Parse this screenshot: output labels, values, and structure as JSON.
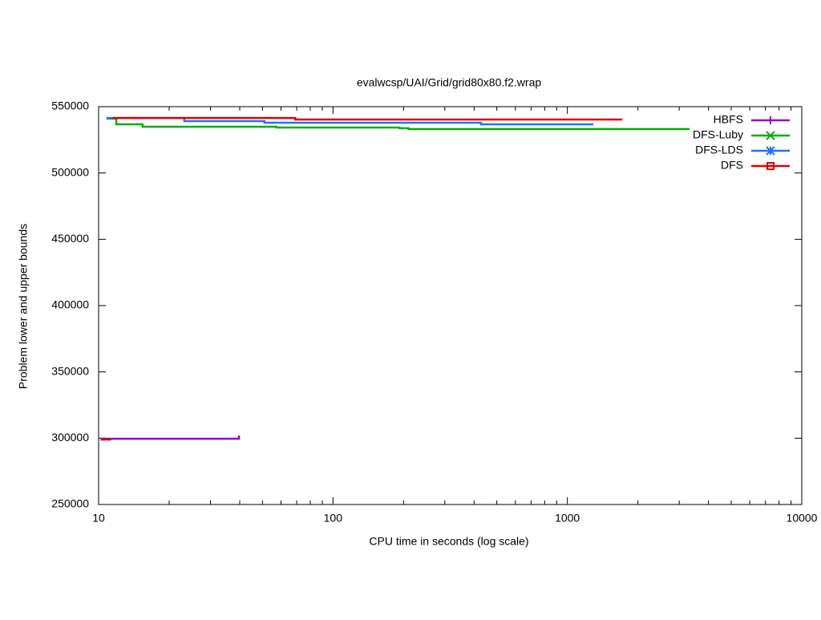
{
  "chart_data": {
    "type": "line",
    "title": "evalwcsp/UAI/Grid/grid80x80.f2.wrap",
    "x_label": "CPU time in seconds (log scale)",
    "y_label": "Problem lower and upper bounds",
    "x_log": true,
    "step": true,
    "legend": "top-right",
    "xlim": [
      10,
      10000
    ],
    "xticks": [
      10,
      100,
      1000,
      10000
    ],
    "ylim": [
      250000,
      550000
    ],
    "yticks": [
      250000,
      300000,
      350000,
      400000,
      450000,
      500000,
      550000
    ],
    "series": [
      {
        "name": "HBFS",
        "color": "#9400d3",
        "marker": "plus",
        "x": [
          10.2,
          39.7,
          39.7
        ],
        "values": [
          299600,
          299600,
          302000
        ]
      },
      {
        "name": "DFS-Luby",
        "color": "#00b000",
        "marker": "cross",
        "x": [
          10.8,
          11.9,
          11.9,
          15.4,
          15.4,
          57.4,
          57.4,
          192,
          192,
          210,
          210,
          3319
        ],
        "values": [
          541000,
          541000,
          536700,
          536700,
          534900,
          534900,
          534300,
          534300,
          533700,
          533700,
          533100,
          533100
        ]
      },
      {
        "name": "DFS-LDS",
        "color": "#1a75ff",
        "marker": "star",
        "x": [
          10.8,
          23.2,
          23.2,
          51,
          51,
          428,
          428,
          1291
        ],
        "values": [
          541500,
          541500,
          539100,
          539100,
          537900,
          537900,
          536700,
          536700
        ]
      },
      {
        "name": "DFS",
        "color": "#e00000",
        "marker": "square",
        "x": [
          10.2,
          11.3,
          11.3,
          11.5,
          69,
          69,
          1714
        ],
        "values": [
          299000,
          299000,
          null,
          541500,
          541500,
          540300,
          540300
        ]
      }
    ]
  }
}
